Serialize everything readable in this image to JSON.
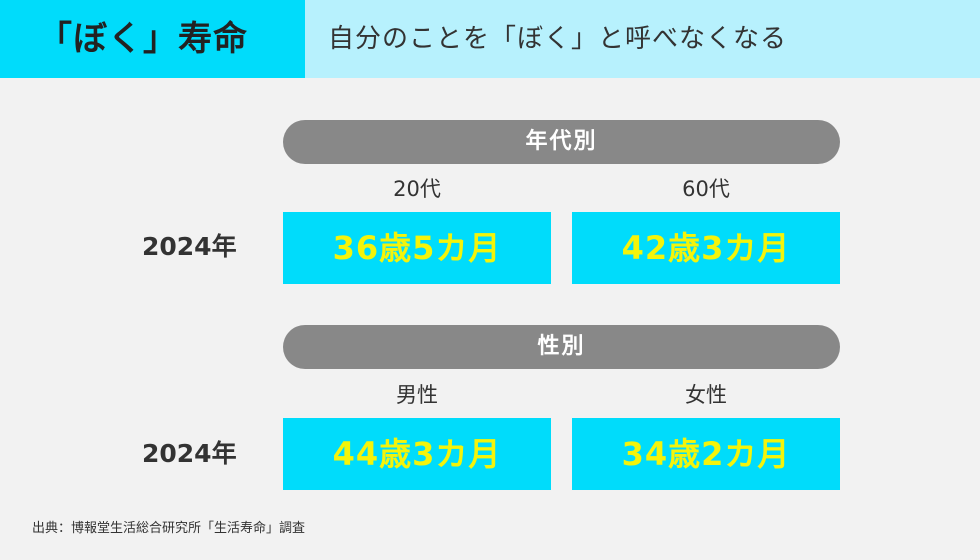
{
  "header": {
    "title": "「ぼく」寿命",
    "subtitle": "自分のことを「ぼく」と呼べなくなる"
  },
  "sections": [
    {
      "heading": "年代別",
      "columns": [
        "20代",
        "60代"
      ],
      "row_label": "2024年",
      "values": [
        "36歳5カ月",
        "42歳3カ月"
      ]
    },
    {
      "heading": "性別",
      "columns": [
        "男性",
        "女性"
      ],
      "row_label": "2024年",
      "values": [
        "44歳3カ月",
        "34歳2カ月"
      ]
    }
  ],
  "footer": {
    "source": "出典：博報堂生活総合研究所「生活寿命」調査"
  },
  "colors": {
    "accent": "#00dcfb",
    "header_light": "#b7f1fd",
    "value_text": "#f4f40a",
    "pill": "#888888",
    "background": "#f2f2f2"
  }
}
